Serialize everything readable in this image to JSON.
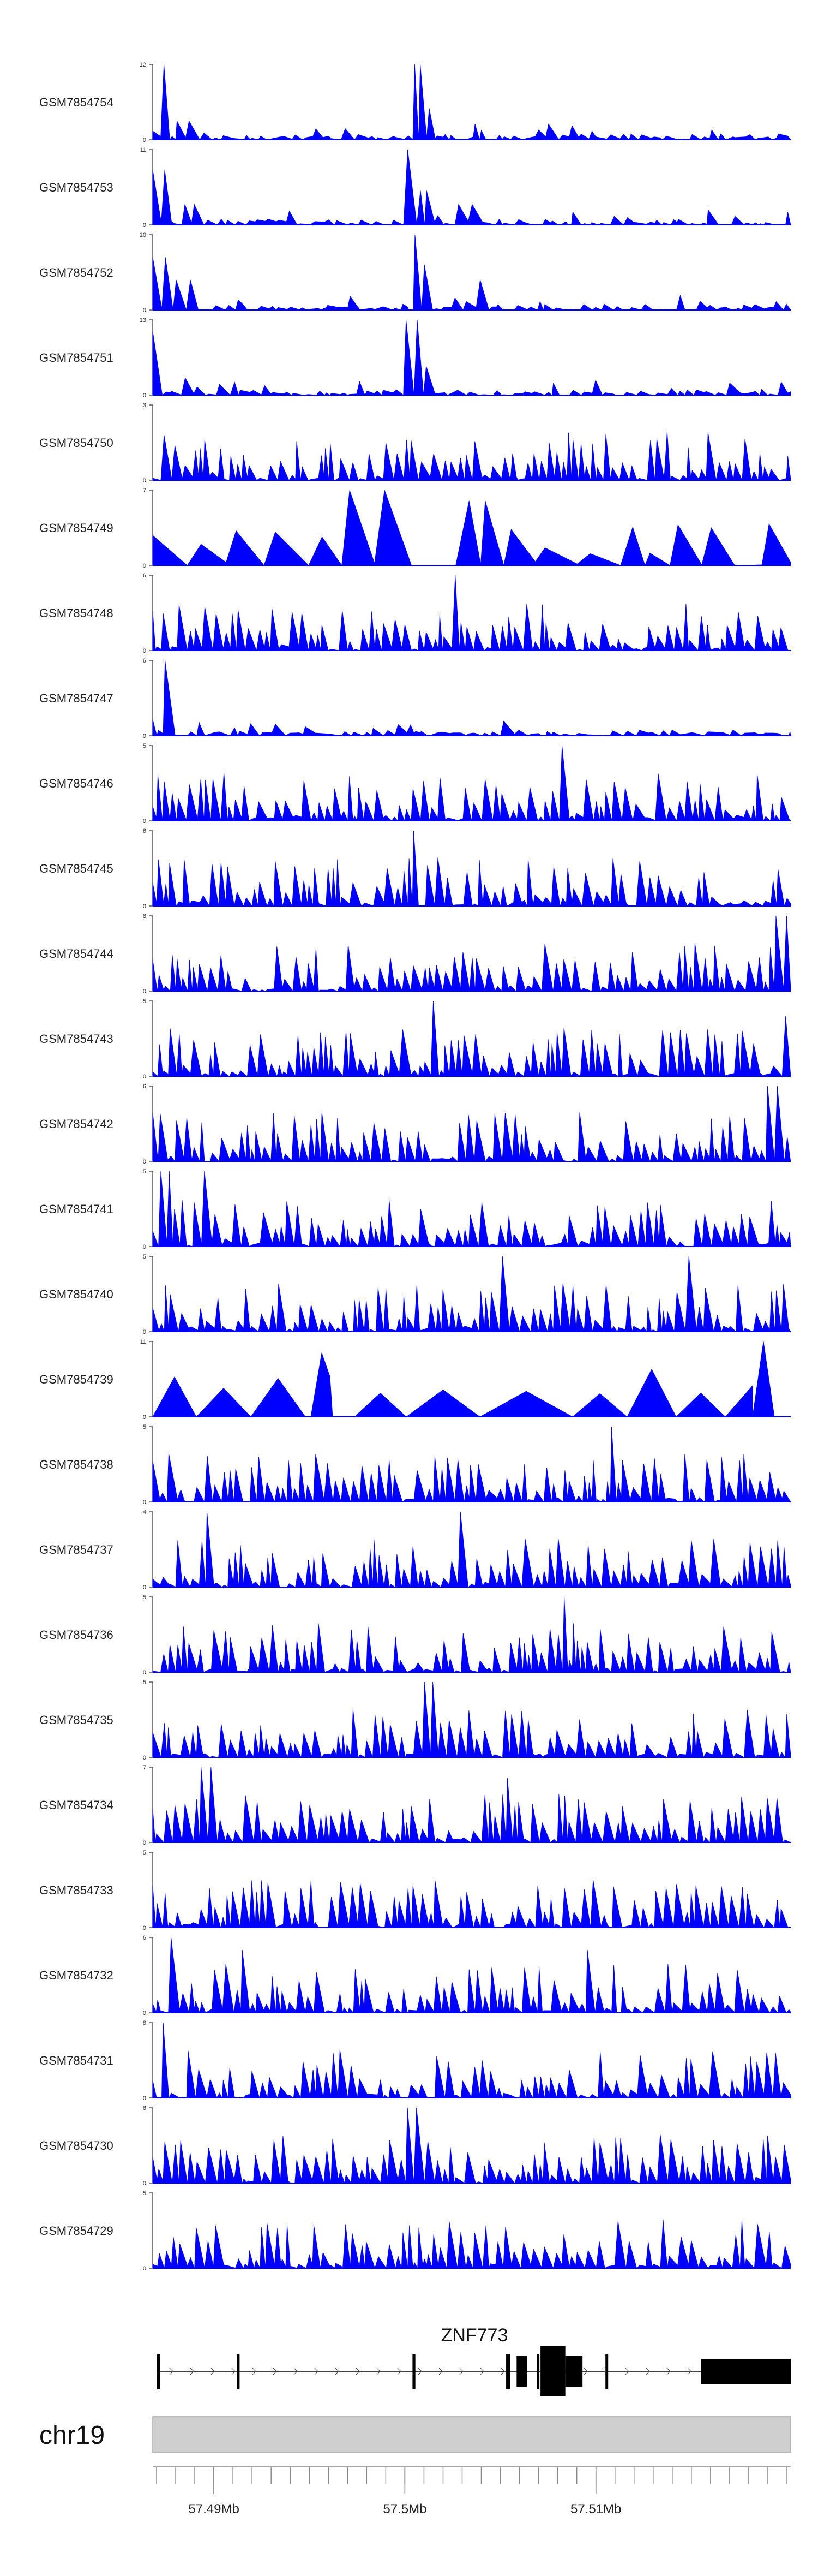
{
  "chart_data": {
    "type": "area",
    "title": "",
    "fill_color": "#0000ff",
    "x_range": [
      57486800,
      57520200
    ],
    "tracks": [
      {
        "name": "GSM7854754",
        "ymax": 12,
        "profile": "sparse",
        "peaks": [
          [
            57487300,
            12
          ],
          [
            57488500,
            3
          ],
          [
            57500500,
            12
          ],
          [
            57501000,
            5
          ]
        ]
      },
      {
        "name": "GSM7854753",
        "ymax": 11,
        "profile": "sparse",
        "peaks": [
          [
            57487200,
            8
          ],
          [
            57488700,
            3
          ],
          [
            57500500,
            11
          ],
          [
            57501000,
            5
          ],
          [
            57503000,
            3
          ]
        ]
      },
      {
        "name": "GSM7854752",
        "ymax": 10,
        "profile": "sparse",
        "peaks": [
          [
            57487200,
            7
          ],
          [
            57488500,
            4
          ],
          [
            57500500,
            10
          ],
          [
            57501200,
            6
          ],
          [
            57504200,
            4
          ]
        ]
      },
      {
        "name": "GSM7854751",
        "ymax": 13,
        "profile": "sparse",
        "peaks": [
          [
            57487200,
            11
          ],
          [
            57488500,
            3
          ],
          [
            57500400,
            13
          ],
          [
            57501200,
            5
          ]
        ]
      },
      {
        "name": "GSM7854750",
        "ymax": 3,
        "profile": "dense",
        "peaks": []
      },
      {
        "name": "GSM7854749",
        "ymax": 7,
        "profile": "wide",
        "peaks": [
          [
            57498100,
            7
          ],
          [
            57503500,
            6
          ]
        ]
      },
      {
        "name": "GSM7854748",
        "ymax": 6,
        "profile": "dense",
        "peaks": [
          [
            57502600,
            6
          ]
        ]
      },
      {
        "name": "GSM7854747",
        "ymax": 6,
        "profile": "sparse",
        "peaks": [
          [
            57487500,
            6
          ]
        ]
      },
      {
        "name": "GSM7854746",
        "ymax": 5,
        "profile": "dense",
        "peaks": [
          [
            57508500,
            5
          ]
        ]
      },
      {
        "name": "GSM7854745",
        "ymax": 6,
        "profile": "dense",
        "peaks": [
          [
            57500500,
            6
          ]
        ]
      },
      {
        "name": "GSM7854744",
        "ymax": 8,
        "profile": "dense",
        "peaks": [
          [
            57519800,
            8
          ]
        ]
      },
      {
        "name": "GSM7854743",
        "ymax": 5,
        "profile": "dense",
        "peaks": [
          [
            57501400,
            5
          ],
          [
            57519800,
            4
          ]
        ]
      },
      {
        "name": "GSM7854742",
        "ymax": 6,
        "profile": "dense",
        "peaks": [
          [
            57519300,
            6
          ]
        ]
      },
      {
        "name": "GSM7854741",
        "ymax": 5,
        "profile": "dense",
        "peaks": [
          [
            57487500,
            5
          ],
          [
            57489400,
            5
          ]
        ]
      },
      {
        "name": "GSM7854740",
        "ymax": 5,
        "profile": "dense",
        "peaks": [
          [
            57505200,
            5
          ],
          [
            57514800,
            5
          ]
        ]
      },
      {
        "name": "GSM7854739",
        "ymax": 11,
        "profile": "triangles",
        "peaks": [
          [
            57518800,
            11
          ]
        ]
      },
      {
        "name": "GSM7854738",
        "ymax": 5,
        "profile": "dense",
        "peaks": [
          [
            57510900,
            5
          ]
        ]
      },
      {
        "name": "GSM7854737",
        "ymax": 4,
        "profile": "dense",
        "peaks": [
          [
            57489600,
            4
          ],
          [
            57503200,
            4
          ]
        ]
      },
      {
        "name": "GSM7854736",
        "ymax": 5,
        "profile": "dense",
        "peaks": [
          [
            57508300,
            5
          ]
        ]
      },
      {
        "name": "GSM7854735",
        "ymax": 5,
        "profile": "dense",
        "peaks": [
          [
            57501300,
            5
          ]
        ]
      },
      {
        "name": "GSM7854734",
        "ymax": 7,
        "profile": "dense",
        "peaks": [
          [
            57489700,
            7
          ],
          [
            57505400,
            6
          ]
        ]
      },
      {
        "name": "GSM7854733",
        "ymax": 5,
        "profile": "dense",
        "peaks": []
      },
      {
        "name": "GSM7854732",
        "ymax": 6,
        "profile": "dense",
        "peaks": [
          [
            57488000,
            6
          ],
          [
            57491700,
            5
          ],
          [
            57509800,
            5
          ]
        ]
      },
      {
        "name": "GSM7854731",
        "ymax": 8,
        "profile": "dense",
        "peaks": [
          [
            57487300,
            8
          ],
          [
            57488600,
            5
          ]
        ]
      },
      {
        "name": "GSM7854730",
        "ymax": 6,
        "profile": "dense",
        "peaks": [
          [
            57500300,
            6
          ]
        ]
      },
      {
        "name": "GSM7854729",
        "ymax": 5,
        "profile": "dense",
        "peaks": []
      }
    ],
    "gene": {
      "name": "ZNF773",
      "strand": "+",
      "start": 57487000,
      "end": 57520200,
      "exons": [
        [
          57487000,
          57487200
        ],
        [
          57491200,
          57491350
        ],
        [
          57500400,
          57500550
        ],
        [
          57505300,
          57505500
        ],
        [
          57505850,
          57506400
        ],
        [
          57506900,
          57507000
        ],
        [
          57507100,
          57508400
        ],
        [
          57508400,
          57509300
        ],
        [
          57510500,
          57510600
        ],
        [
          57515500,
          57520200
        ]
      ]
    },
    "chromosome": "chr19",
    "x_axis": {
      "ticks": [
        57487000,
        57488000,
        57489000,
        57490000,
        57491000,
        57492000,
        57493000,
        57494000,
        57495000,
        57496000,
        57497000,
        57498000,
        57499000,
        57500000,
        57501000,
        57502000,
        57503000,
        57504000,
        57505000,
        57506000,
        57507000,
        57508000,
        57509000,
        57510000,
        57511000,
        57512000,
        57513000,
        57514000,
        57515000,
        57516000,
        57517000,
        57518000,
        57519000,
        57520000
      ],
      "labeled_ticks": [
        {
          "value": 57490000,
          "label": "57.49Mb"
        },
        {
          "value": 57500000,
          "label": "57.5Mb"
        },
        {
          "value": 57510000,
          "label": "57.51Mb"
        }
      ]
    }
  }
}
